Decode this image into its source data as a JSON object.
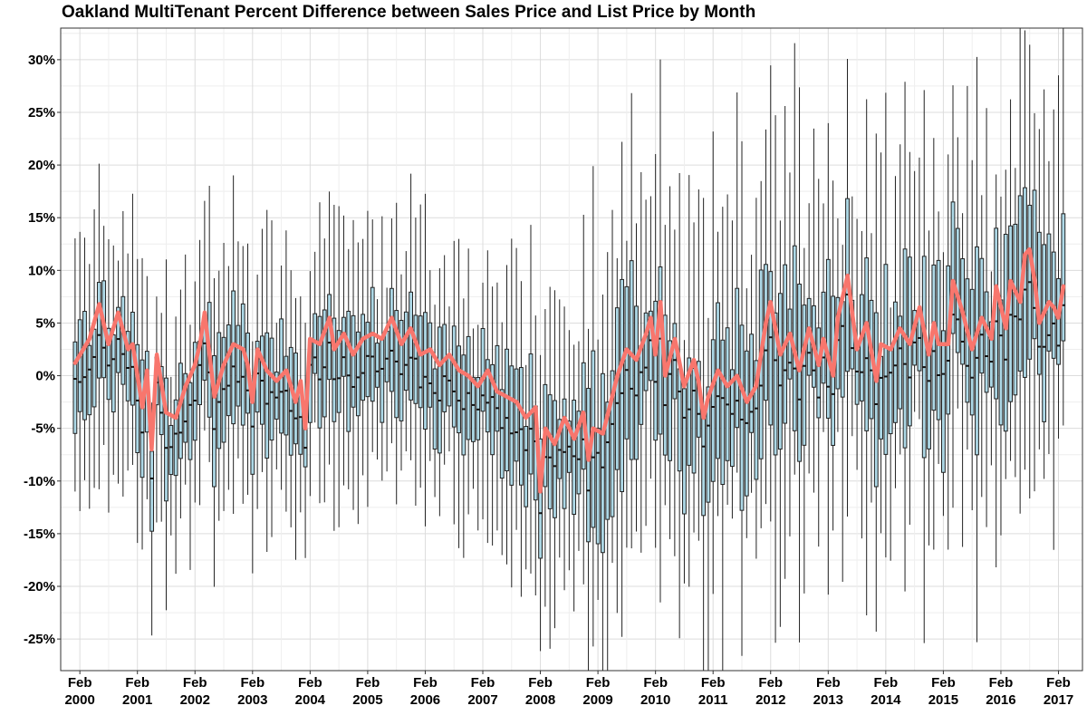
{
  "chart_data": {
    "type": "box",
    "title": "Oakland MultiTenant Percent Difference between Sales Price and List Price by Month",
    "xlabel": "",
    "ylabel": "",
    "ylim": [
      -28,
      33
    ],
    "y_ticks": [
      -25,
      -20,
      -15,
      -10,
      -5,
      0,
      5,
      10,
      15,
      20,
      25,
      30
    ],
    "y_tick_labels": [
      "-25%",
      "-20%",
      "-15%",
      "-10%",
      "-5%",
      "0%",
      "5%",
      "10%",
      "15%",
      "20%",
      "25%",
      "30%"
    ],
    "x_range": [
      1999.75,
      2017.5
    ],
    "x_ticks": [
      {
        "month": "Feb",
        "year": "2000",
        "x": 2000.083
      },
      {
        "month": "Feb",
        "year": "2001",
        "x": 2001.083
      },
      {
        "month": "Feb",
        "year": "2002",
        "x": 2002.083
      },
      {
        "month": "Feb",
        "year": "2003",
        "x": 2003.083
      },
      {
        "month": "Feb",
        "year": "2004",
        "x": 2004.083
      },
      {
        "month": "Feb",
        "year": "2005",
        "x": 2005.083
      },
      {
        "month": "Feb",
        "year": "2006",
        "x": 2006.083
      },
      {
        "month": "Feb",
        "year": "2007",
        "x": 2007.083
      },
      {
        "month": "Feb",
        "year": "2008",
        "x": 2008.083
      },
      {
        "month": "Feb",
        "year": "2009",
        "x": 2009.083
      },
      {
        "month": "Feb",
        "year": "2010",
        "x": 2010.083
      },
      {
        "month": "Feb",
        "year": "2011",
        "x": 2011.083
      },
      {
        "month": "Feb",
        "year": "2012",
        "x": 2012.083
      },
      {
        "month": "Feb",
        "year": "2013",
        "x": 2013.083
      },
      {
        "month": "Feb",
        "year": "2014",
        "x": 2014.083
      },
      {
        "month": "Feb",
        "year": "2015",
        "x": 2015.083
      },
      {
        "month": "Feb",
        "year": "2016",
        "x": 2016.083
      },
      {
        "month": "Feb",
        "year": "2017",
        "x": 2017.083
      }
    ],
    "grid": true,
    "box_fill": "#add8e6",
    "line_color": "#f8766d",
    "mean_line": [
      [
        2000.0,
        1.2
      ],
      [
        2000.25,
        3.5
      ],
      [
        2000.42,
        6.8
      ],
      [
        2000.58,
        3.0
      ],
      [
        2000.75,
        6.0
      ],
      [
        2000.92,
        2.5
      ],
      [
        2001.0,
        3.0
      ],
      [
        2001.17,
        -3.0
      ],
      [
        2001.25,
        0.5
      ],
      [
        2001.33,
        -7.0
      ],
      [
        2001.42,
        2.0
      ],
      [
        2001.58,
        -3.5
      ],
      [
        2001.75,
        -4.0
      ],
      [
        2001.92,
        -1.0
      ],
      [
        2002.08,
        1.0
      ],
      [
        2002.17,
        3.0
      ],
      [
        2002.25,
        6.0
      ],
      [
        2002.42,
        -2.0
      ],
      [
        2002.58,
        1.0
      ],
      [
        2002.75,
        3.0
      ],
      [
        2002.92,
        2.5
      ],
      [
        2003.0,
        1.0
      ],
      [
        2003.08,
        -2.5
      ],
      [
        2003.17,
        2.5
      ],
      [
        2003.33,
        0.5
      ],
      [
        2003.5,
        -0.5
      ],
      [
        2003.67,
        0.5
      ],
      [
        2003.83,
        -2.5
      ],
      [
        2003.92,
        -0.5
      ],
      [
        2004.0,
        -5.0
      ],
      [
        2004.08,
        3.5
      ],
      [
        2004.25,
        3.0
      ],
      [
        2004.42,
        5.5
      ],
      [
        2004.5,
        2.5
      ],
      [
        2004.67,
        4.0
      ],
      [
        2004.83,
        2.0
      ],
      [
        2005.0,
        3.5
      ],
      [
        2005.17,
        4.0
      ],
      [
        2005.33,
        3.5
      ],
      [
        2005.5,
        5.5
      ],
      [
        2005.67,
        3.0
      ],
      [
        2005.83,
        4.5
      ],
      [
        2006.0,
        2.0
      ],
      [
        2006.17,
        2.5
      ],
      [
        2006.33,
        1.0
      ],
      [
        2006.5,
        2.0
      ],
      [
        2006.67,
        0.5
      ],
      [
        2006.83,
        0.0
      ],
      [
        2007.0,
        -1.0
      ],
      [
        2007.17,
        0.5
      ],
      [
        2007.33,
        -1.5
      ],
      [
        2007.5,
        -2.0
      ],
      [
        2007.67,
        -2.5
      ],
      [
        2007.83,
        -4.0
      ],
      [
        2008.0,
        -3.0
      ],
      [
        2008.08,
        -11.0
      ],
      [
        2008.17,
        -5.0
      ],
      [
        2008.33,
        -6.5
      ],
      [
        2008.5,
        -4.0
      ],
      [
        2008.67,
        -6.0
      ],
      [
        2008.83,
        -3.5
      ],
      [
        2008.92,
        -8.0
      ],
      [
        2009.0,
        -5.0
      ],
      [
        2009.17,
        -5.5
      ],
      [
        2009.33,
        -2.0
      ],
      [
        2009.42,
        0.0
      ],
      [
        2009.58,
        2.5
      ],
      [
        2009.75,
        1.5
      ],
      [
        2009.92,
        4.0
      ],
      [
        2010.0,
        5.5
      ],
      [
        2010.08,
        2.0
      ],
      [
        2010.17,
        7.0
      ],
      [
        2010.25,
        0.0
      ],
      [
        2010.42,
        3.5
      ],
      [
        2010.58,
        -1.0
      ],
      [
        2010.75,
        1.5
      ],
      [
        2010.83,
        -0.5
      ],
      [
        2010.92,
        -4.0
      ],
      [
        2011.0,
        -2.0
      ],
      [
        2011.17,
        0.5
      ],
      [
        2011.33,
        -1.0
      ],
      [
        2011.5,
        0.0
      ],
      [
        2011.67,
        -2.5
      ],
      [
        2011.83,
        -1.0
      ],
      [
        2012.0,
        5.0
      ],
      [
        2012.08,
        7.0
      ],
      [
        2012.25,
        2.0
      ],
      [
        2012.42,
        4.0
      ],
      [
        2012.58,
        0.5
      ],
      [
        2012.75,
        4.5
      ],
      [
        2012.92,
        1.0
      ],
      [
        2013.0,
        3.5
      ],
      [
        2013.17,
        0.0
      ],
      [
        2013.25,
        5.5
      ],
      [
        2013.42,
        9.5
      ],
      [
        2013.58,
        2.5
      ],
      [
        2013.75,
        5.0
      ],
      [
        2013.92,
        -0.5
      ],
      [
        2014.0,
        3.0
      ],
      [
        2014.17,
        2.5
      ],
      [
        2014.33,
        4.5
      ],
      [
        2014.5,
        3.0
      ],
      [
        2014.67,
        6.5
      ],
      [
        2014.83,
        2.0
      ],
      [
        2014.92,
        5.0
      ],
      [
        2015.0,
        3.0
      ],
      [
        2015.17,
        3.0
      ],
      [
        2015.25,
        9.0
      ],
      [
        2015.42,
        6.0
      ],
      [
        2015.58,
        2.5
      ],
      [
        2015.75,
        5.5
      ],
      [
        2015.92,
        3.5
      ],
      [
        2016.0,
        8.5
      ],
      [
        2016.17,
        4.5
      ],
      [
        2016.25,
        9.0
      ],
      [
        2016.42,
        7.0
      ],
      [
        2016.5,
        11.5
      ],
      [
        2016.58,
        12.0
      ],
      [
        2016.67,
        9.0
      ],
      [
        2016.75,
        5.0
      ],
      [
        2016.92,
        7.0
      ],
      [
        2017.0,
        6.5
      ],
      [
        2017.08,
        5.5
      ],
      [
        2017.17,
        8.5
      ]
    ]
  }
}
